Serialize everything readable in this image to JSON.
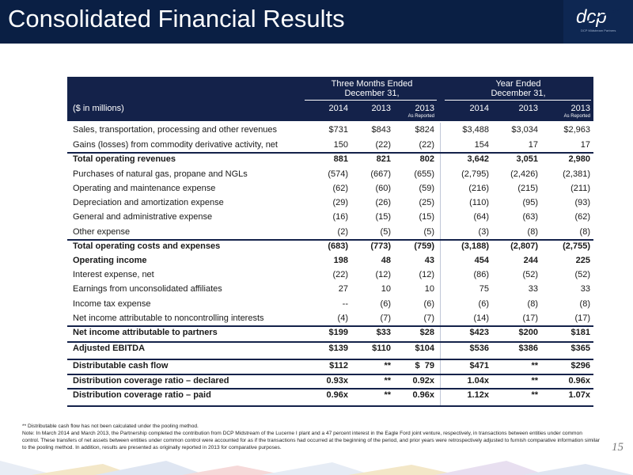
{
  "header": {
    "title": "Consolidated Financial Results",
    "logo_text": "dcp",
    "logo_tagline": "DCP Midstream Partners",
    "brand_color": "#0a1f44"
  },
  "table": {
    "units_label": "($ in millions)",
    "group_headers": [
      {
        "line1": "Three Months Ended",
        "line2": "December 31,"
      },
      {
        "line1": "Year Ended",
        "line2": "December 31,"
      }
    ],
    "columns": [
      {
        "label": "2014",
        "sub": ""
      },
      {
        "label": "2013",
        "sub": ""
      },
      {
        "label": "2013",
        "sub": "As Reported"
      },
      {
        "label": "2014",
        "sub": ""
      },
      {
        "label": "2013",
        "sub": ""
      },
      {
        "label": "2013",
        "sub": "As Reported"
      }
    ],
    "rows": [
      {
        "label": "Sales, transportation, processing and other revenues",
        "values": [
          "$731",
          "$843",
          "$824",
          "$3,488",
          "$3,034",
          "$2,963"
        ],
        "bold": false
      },
      {
        "label": "Gains (losses) from commodity derivative activity, net",
        "values": [
          "150",
          "(22)",
          "(22)",
          "154",
          "17",
          "17"
        ],
        "bold": false
      },
      {
        "label": "Total operating revenues",
        "values": [
          "881",
          "821",
          "802",
          "3,642",
          "3,051",
          "2,980"
        ],
        "bold": true
      },
      {
        "label": "Purchases of natural gas, propane and NGLs",
        "values": [
          "(574)",
          "(667)",
          "(655)",
          "(2,795)",
          "(2,426)",
          "(2,381)"
        ],
        "bold": false
      },
      {
        "label": "Operating and maintenance expense",
        "values": [
          "(62)",
          "(60)",
          "(59)",
          "(216)",
          "(215)",
          "(211)"
        ],
        "bold": false
      },
      {
        "label": "Depreciation and amortization expense",
        "values": [
          "(29)",
          "(26)",
          "(25)",
          "(110)",
          "(95)",
          "(93)"
        ],
        "bold": false
      },
      {
        "label": "General and administrative expense",
        "values": [
          "(16)",
          "(15)",
          "(15)",
          "(64)",
          "(63)",
          "(62)"
        ],
        "bold": false
      },
      {
        "label": "Other expense",
        "values": [
          "(2)",
          "(5)",
          "(5)",
          "(3)",
          "(8)",
          "(8)"
        ],
        "bold": false
      },
      {
        "label": "Total operating costs and expenses",
        "values": [
          "(683)",
          "(773)",
          "(759)",
          "(3,188)",
          "(2,807)",
          "(2,755)"
        ],
        "bold": true
      },
      {
        "label": "Operating income",
        "values": [
          "198",
          "48",
          "43",
          "454",
          "244",
          "225"
        ],
        "bold": true
      },
      {
        "label": "Interest expense, net",
        "values": [
          "(22)",
          "(12)",
          "(12)",
          "(86)",
          "(52)",
          "(52)"
        ],
        "bold": false
      },
      {
        "label": "Earnings from unconsolidated affiliates",
        "values": [
          "27",
          "10",
          "10",
          "75",
          "33",
          "33"
        ],
        "bold": false
      },
      {
        "label": "Income tax expense",
        "values": [
          "--",
          "(6)",
          "(6)",
          "(6)",
          "(8)",
          "(8)"
        ],
        "bold": false
      },
      {
        "label": "Net income attributable to noncontrolling interests",
        "values": [
          "(4)",
          "(7)",
          "(7)",
          "(14)",
          "(17)",
          "(17)"
        ],
        "bold": false
      },
      {
        "label": "Net income attributable to partners",
        "values": [
          "$199",
          "$33",
          "$28",
          "$423",
          "$200",
          "$181"
        ],
        "bold": true
      },
      {
        "label": "Adjusted EBITDA",
        "values": [
          "$139",
          "$110",
          "$104",
          "$536",
          "$386",
          "$365"
        ],
        "bold": true
      },
      {
        "label": "Distributable cash flow",
        "values": [
          "$112",
          "**",
          "$  79",
          "$471",
          "**",
          "$296"
        ],
        "bold": true
      },
      {
        "label": "Distribution coverage ratio – declared",
        "values": [
          "0.93x",
          "**",
          "0.92x",
          "1.04x",
          "**",
          "0.96x"
        ],
        "bold": true
      },
      {
        "label": "Distribution coverage ratio – paid",
        "values": [
          "0.96x",
          "**",
          "0.96x",
          "1.12x",
          "**",
          "1.07x"
        ],
        "bold": true
      }
    ]
  },
  "notes": [
    "** Distributable cash flow has not been calculated under the pooling method.",
    "Note: In March 2014 and March 2013, the Partnership completed the contribution from DCP Midstream of the Lucerne I plant and a 47 percent interest in the Eagle Ford joint venture, respectively, in transactions between entities under common control. These transfers of net assets between entities under common control were accounted for as if the transactions had occurred at the beginning of the period, and prior years were retrospectively adjusted to furnish comparative information similar to the pooling method. In addition, results are presented as originally reported in 2013 for comparative purposes."
  ],
  "page_number": "15"
}
